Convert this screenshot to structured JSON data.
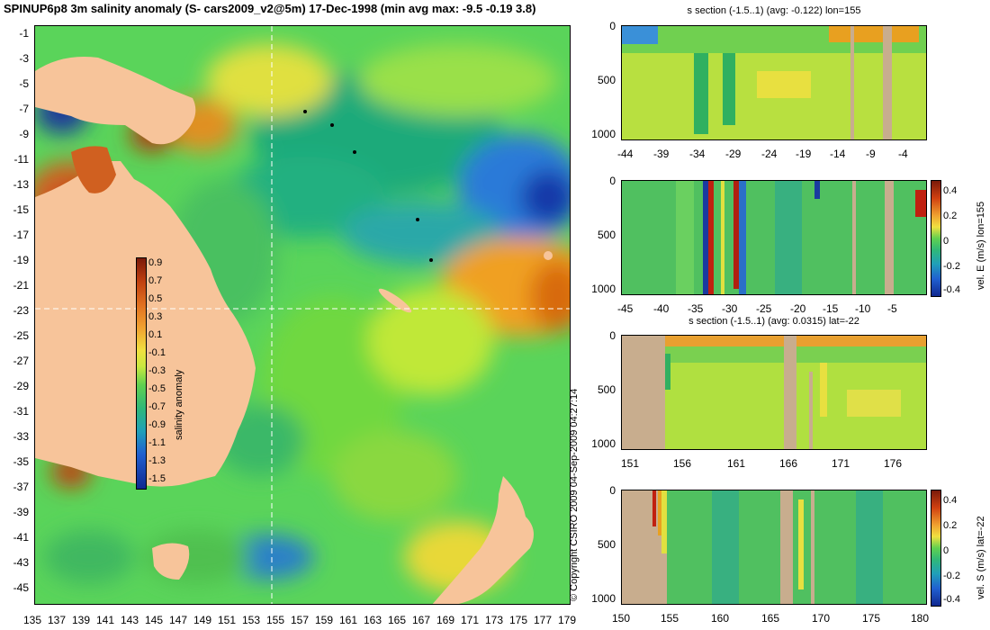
{
  "title": "SPINUP6p8 3m salinity anomaly (S- cars2009_v2@5m) 17-Dec-1998 (min avg max: -9.5 -0.19 3.8)",
  "copyright": "© Copyright CSIRO 2009   04-Sep-2009 04:27:14",
  "colors": {
    "land": "#f7c49a",
    "section_land": "#c8ad8e",
    "crosshair": "#ffffff"
  },
  "map": {
    "y_ticks": [
      "-1",
      "-3",
      "-5",
      "-7",
      "-9",
      "-11",
      "-13",
      "-15",
      "-17",
      "-19",
      "-21",
      "-23",
      "-25",
      "-27",
      "-29",
      "-31",
      "-33",
      "-35",
      "-37",
      "-39",
      "-41",
      "-43",
      "-45"
    ],
    "x_ticks": [
      "135",
      "137",
      "139",
      "141",
      "143",
      "145",
      "147",
      "149",
      "151",
      "153",
      "155",
      "157",
      "159",
      "161",
      "163",
      "165",
      "167",
      "169",
      "171",
      "173",
      "175",
      "177",
      "179"
    ],
    "colorbar": {
      "label": "salinity anomaly",
      "ticks": [
        "0.9",
        "0.7",
        "0.5",
        "0.3",
        "0.1",
        "-0.1",
        "-0.3",
        "-0.5",
        "-0.7",
        "-0.9",
        "-1.1",
        "-1.3",
        "-1.5"
      ]
    }
  },
  "panels": {
    "p1": {
      "title": "s section (-1.5..1) (avg: -0.122) lon=155",
      "y_ticks": [
        "0",
        "500",
        "1000"
      ],
      "x_ticks": [
        "-44",
        "-39",
        "-34",
        "-29",
        "-24",
        "-19",
        "-14",
        "-9",
        "-4"
      ]
    },
    "p2": {
      "title": "",
      "y_ticks": [
        "0",
        "500",
        "1000"
      ],
      "x_ticks": [
        "-45",
        "-40",
        "-35",
        "-30",
        "-25",
        "-20",
        "-15",
        "-10",
        "-5"
      ],
      "cbar_ticks": [
        "0.4",
        "0.2",
        "0",
        "-0.2",
        "-0.4"
      ],
      "cbar_label": "vel. E (m/s) lon=155"
    },
    "p3": {
      "title": "s section (-1.5..1) (avg: 0.0315) lat=-22",
      "y_ticks": [
        "0",
        "500",
        "1000"
      ],
      "x_ticks": [
        "151",
        "156",
        "161",
        "166",
        "171",
        "176"
      ]
    },
    "p4": {
      "title": "",
      "y_ticks": [
        "0",
        "500",
        "1000"
      ],
      "x_ticks": [
        "150",
        "155",
        "160",
        "165",
        "170",
        "175",
        "180"
      ],
      "cbar_ticks": [
        "0.4",
        "0.2",
        "0",
        "-0.2",
        "-0.4"
      ],
      "cbar_label": "vel. S (m/s) lat=-22"
    }
  }
}
